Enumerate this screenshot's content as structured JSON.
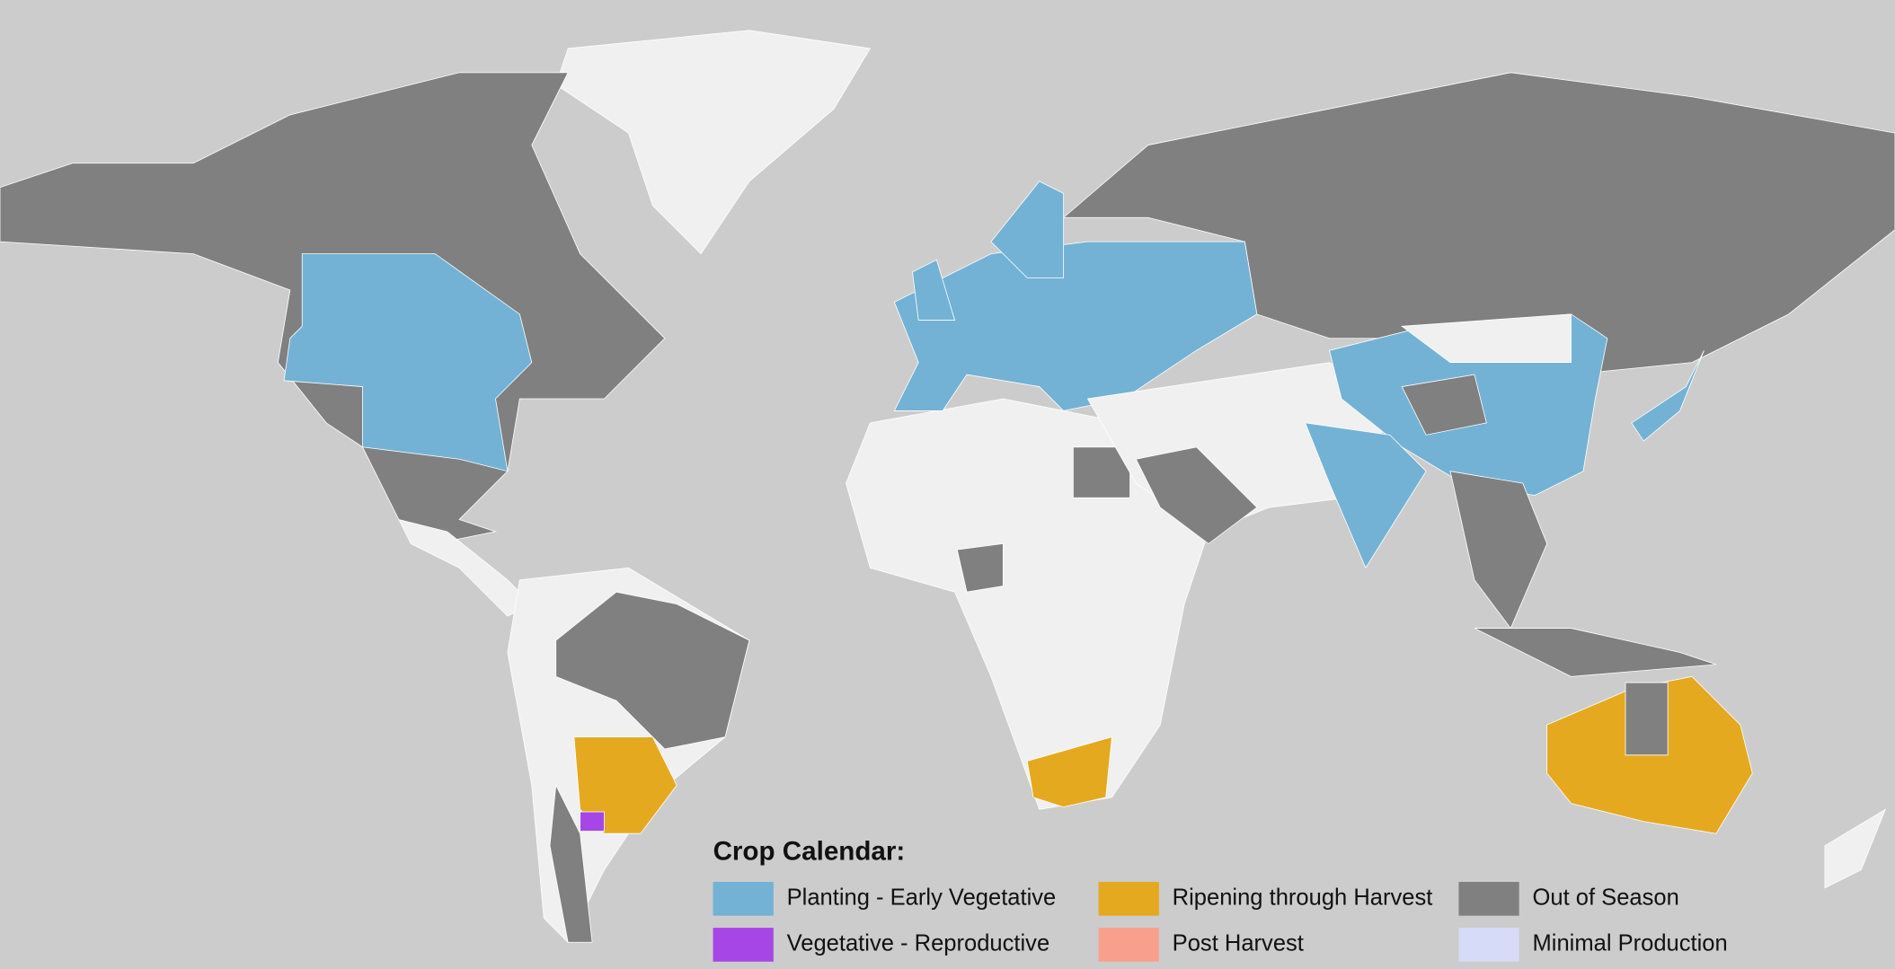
{
  "legend": {
    "title": "Crop Calendar:",
    "items": [
      {
        "label": "Planting - Early Vegetative",
        "color": "#73b2d4"
      },
      {
        "label": "Vegetative - Reproductive",
        "color": "#a646e6"
      },
      {
        "label": "Ripening through Harvest",
        "color": "#e5a91f"
      },
      {
        "label": "Post Harvest",
        "color": "#f9a08c"
      },
      {
        "label": "Out of Season",
        "color": "#808080"
      },
      {
        "label": "Minimal Production",
        "color": "#d6dcf8"
      }
    ]
  }
}
